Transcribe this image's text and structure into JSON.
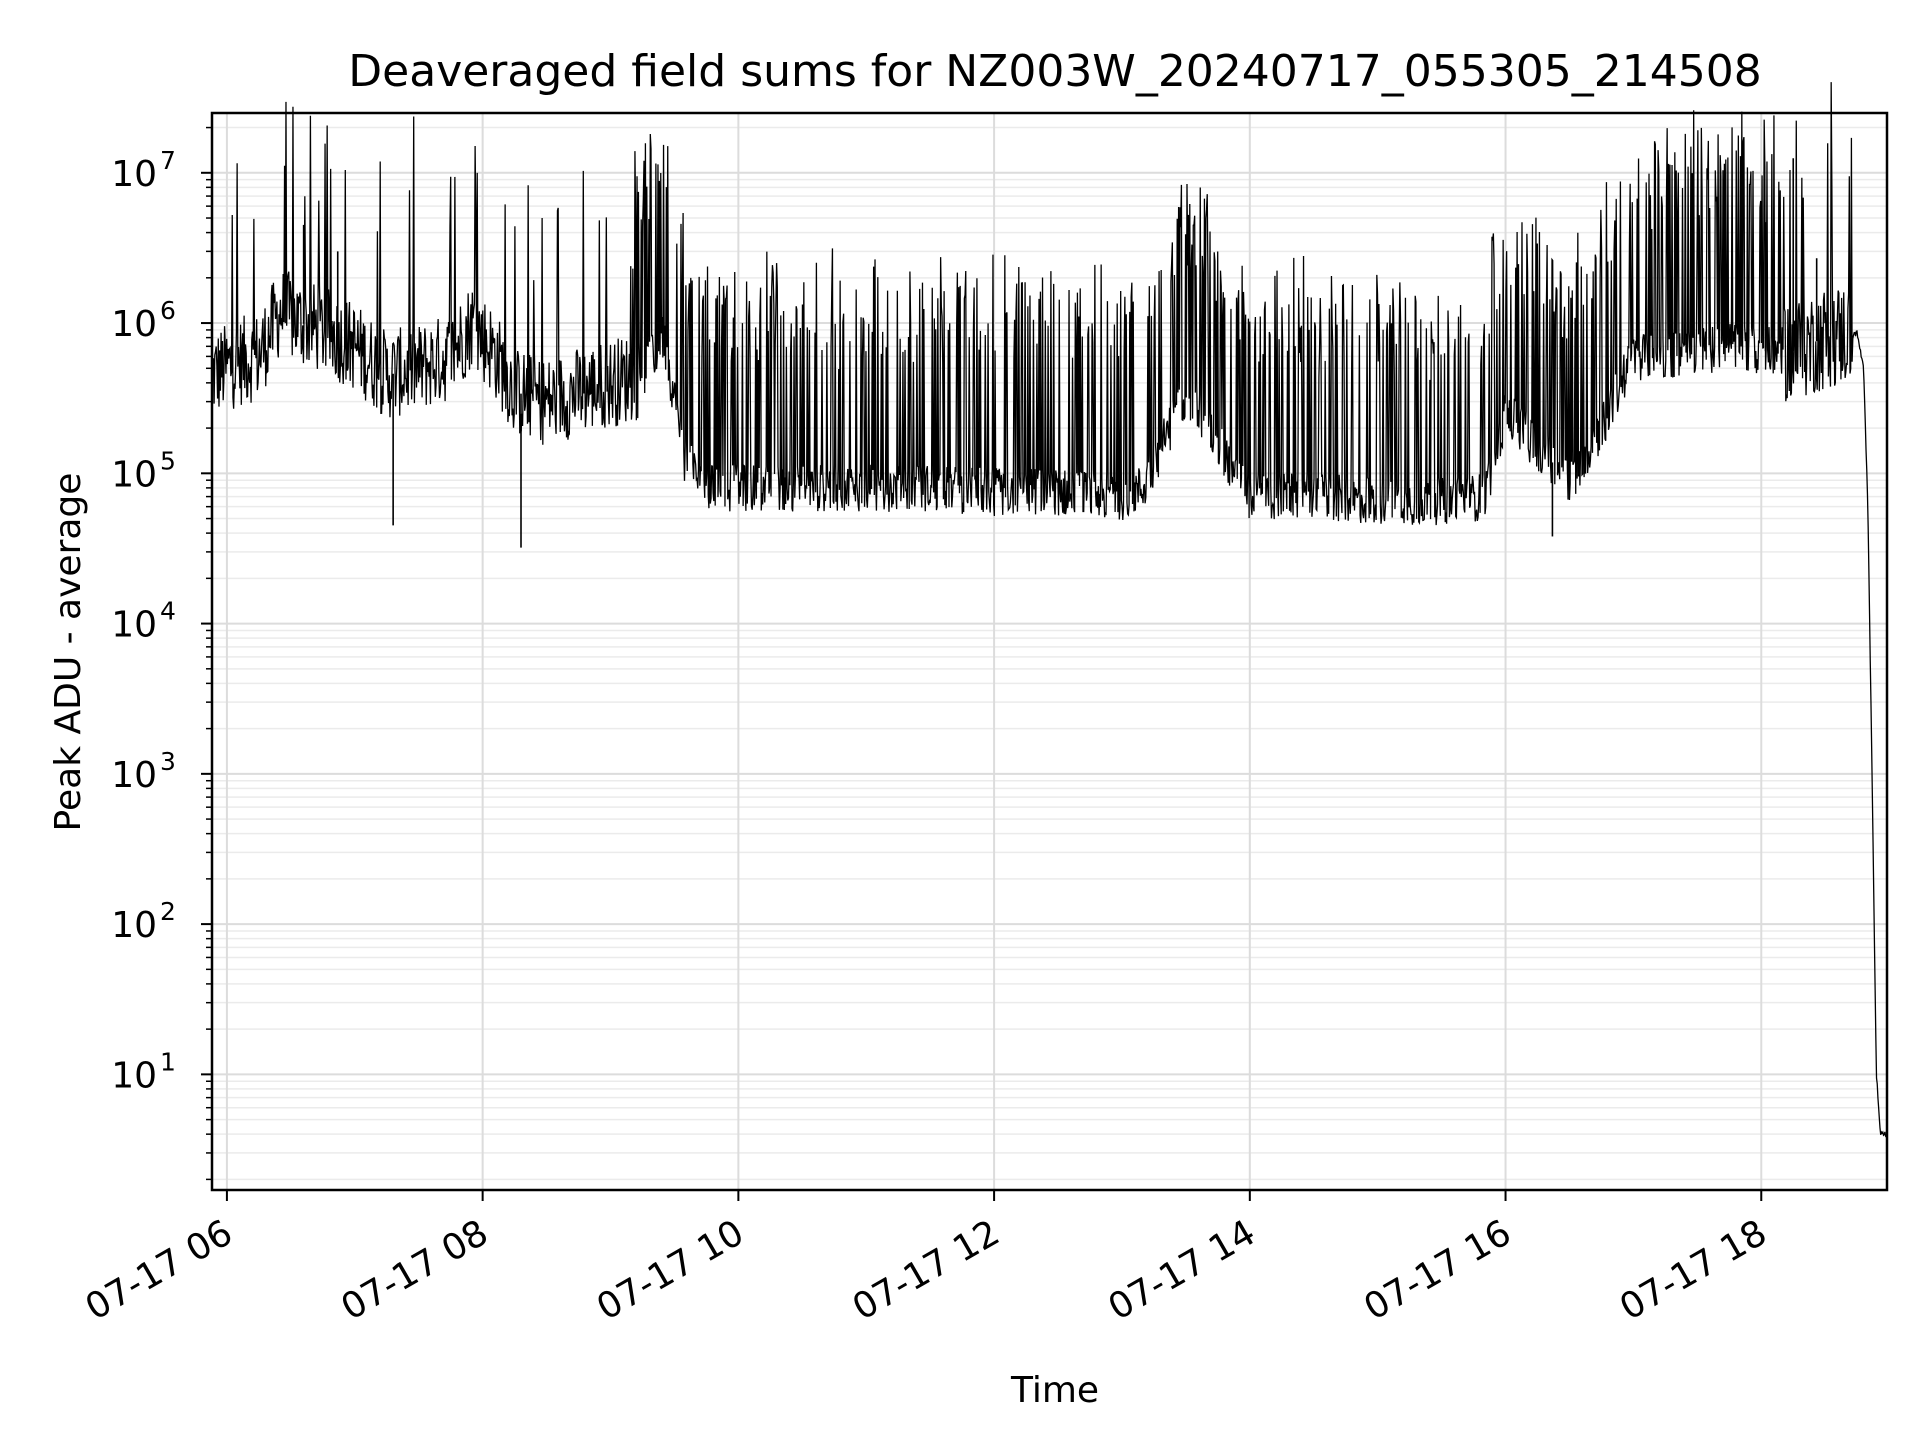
{
  "chart_data": {
    "type": "line",
    "title": "Deaveraged field sums for NZ003W_20240717_055305_214508",
    "xlabel": "Time",
    "ylabel": "Peak ADU - average",
    "yscale": "log",
    "ylim": [
      1.7,
      25000000
    ],
    "xlim": [
      "07-17 05:53",
      "07-17 18:59"
    ],
    "grid": true,
    "line_color": "#000000",
    "x_ticks": [
      {
        "label": "07-17 06",
        "value": "07-17 06:00"
      },
      {
        "label": "07-17 08",
        "value": "07-17 08:00"
      },
      {
        "label": "07-17 10",
        "value": "07-17 10:00"
      },
      {
        "label": "07-17 12",
        "value": "07-17 12:00"
      },
      {
        "label": "07-17 14",
        "value": "07-17 14:00"
      },
      {
        "label": "07-17 16",
        "value": "07-17 16:00"
      },
      {
        "label": "07-17 18",
        "value": "07-17 18:00"
      }
    ],
    "y_ticks": [
      {
        "base": "10",
        "exp": "1",
        "value": 10
      },
      {
        "base": "10",
        "exp": "2",
        "value": 100
      },
      {
        "base": "10",
        "exp": "3",
        "value": 1000
      },
      {
        "base": "10",
        "exp": "4",
        "value": 10000
      },
      {
        "base": "10",
        "exp": "5",
        "value": 100000
      },
      {
        "base": "10",
        "exp": "6",
        "value": 1000000
      },
      {
        "base": "10",
        "exp": "7",
        "value": 10000000
      }
    ],
    "series": [
      {
        "x": [
          "05:53",
          "06:05",
          "06:15",
          "06:25",
          "06:35",
          "06:45",
          "07:00",
          "07:15",
          "07:30",
          "07:45",
          "07:55",
          "08:05",
          "08:15",
          "08:30",
          "08:45",
          "09:00",
          "09:15",
          "09:25",
          "09:35",
          "09:45",
          "10:00",
          "10:30",
          "11:00",
          "11:30",
          "12:00",
          "12:30",
          "13:00",
          "13:10",
          "13:30",
          "14:00",
          "14:30",
          "15:00",
          "15:30",
          "15:50",
          "16:00",
          "16:15",
          "16:30",
          "16:45",
          "17:00",
          "17:15",
          "17:30",
          "17:45",
          "18:00",
          "18:15",
          "18:30",
          "18:40",
          "18:45",
          "18:48",
          "18:50",
          "18:52",
          "18:54",
          "18:56",
          "18:59"
        ],
        "y": [
          450000,
          550000,
          600000,
          1200000,
          1000000,
          900000,
          700000,
          450000,
          500000,
          600000,
          1000000,
          650000,
          350000,
          300000,
          350000,
          400000,
          450000,
          800000,
          120000,
          80000,
          80000,
          80000,
          80000,
          80000,
          75000,
          75000,
          70000,
          80000,
          350000,
          70000,
          70000,
          65000,
          65000,
          70000,
          250000,
          150000,
          90000,
          200000,
          600000,
          600000,
          650000,
          700000,
          650000,
          650000,
          800000,
          850000,
          850000,
          500000,
          60000,
          1000,
          10,
          4,
          4
        ]
      }
    ],
    "spikes": [
      {
        "x": "06:36",
        "y": 4500000
      },
      {
        "x": "06:52",
        "y": 3000000
      },
      {
        "x": "07:18",
        "y": 45000
      },
      {
        "x": "08:18",
        "y": 32000
      },
      {
        "x": "16:22",
        "y": 38000
      },
      {
        "x": "17:18",
        "y": 1600000
      },
      {
        "x": "18:02",
        "y": 4700000
      },
      {
        "x": "18:15",
        "y": 12500000
      },
      {
        "x": "18:26",
        "y": 2700000
      }
    ]
  }
}
